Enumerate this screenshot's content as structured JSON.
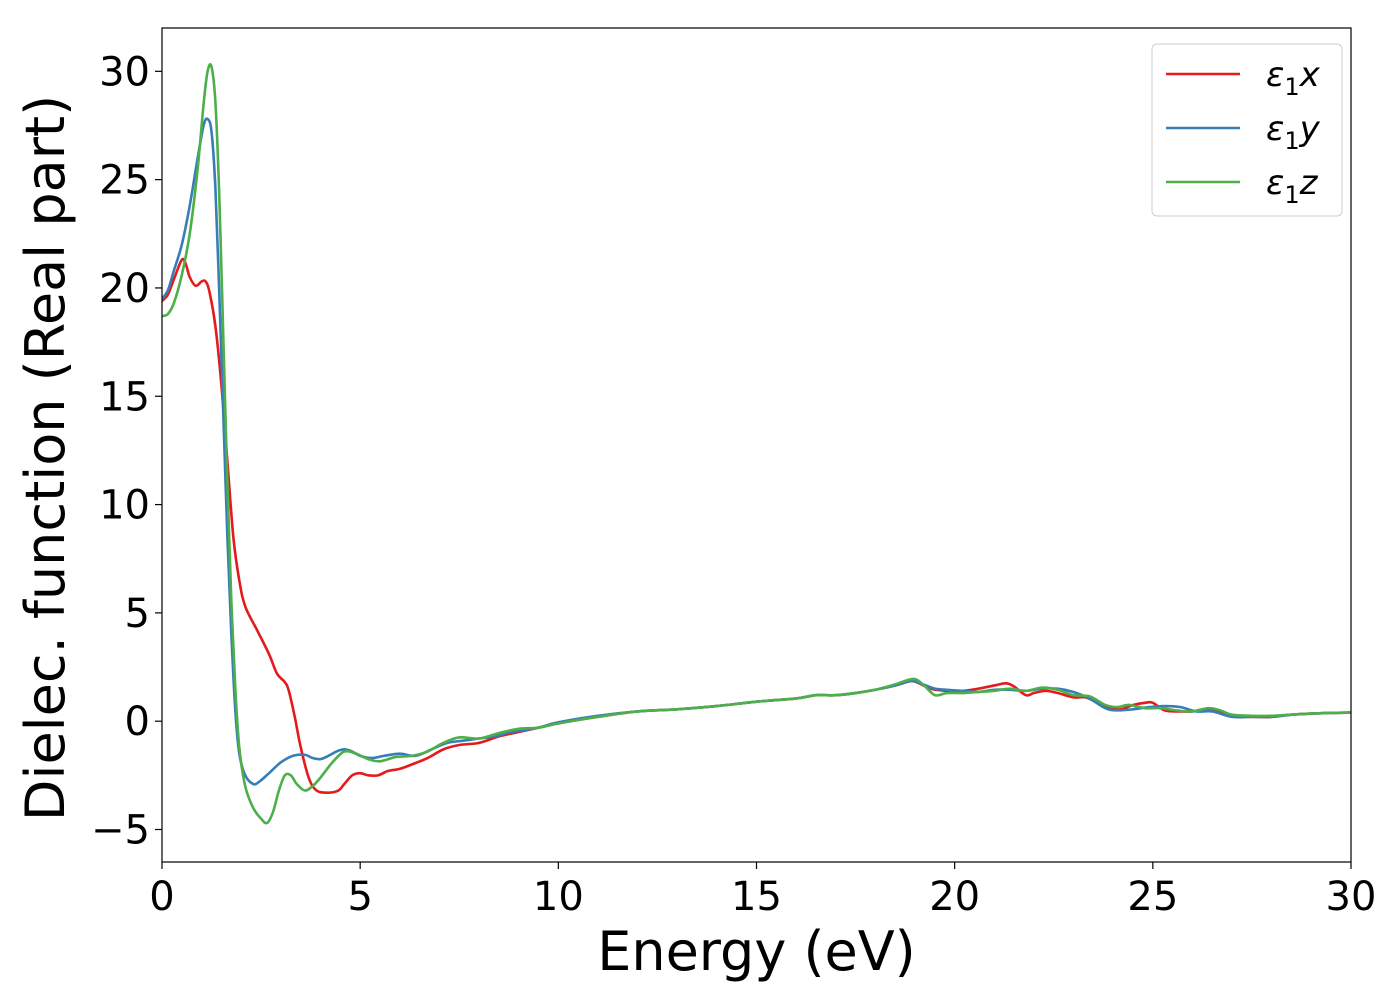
{
  "chart_data": {
    "type": "line",
    "xlabel": "Energy (eV)",
    "ylabel": "Dielec. function (Real part)",
    "xlim": [
      0,
      30
    ],
    "ylim": [
      -6.5,
      32
    ],
    "xticks": [
      0,
      5,
      10,
      15,
      20,
      25,
      30
    ],
    "yticks": [
      -5,
      0,
      5,
      10,
      15,
      20,
      25,
      30
    ],
    "xtick_labels": [
      "0",
      "5",
      "10",
      "15",
      "20",
      "25",
      "30"
    ],
    "ytick_labels": [
      "−5",
      "0",
      "5",
      "10",
      "15",
      "20",
      "25",
      "30"
    ],
    "grid": false,
    "legend_position": "top-right",
    "series": [
      {
        "name": "ε1x",
        "legend_main": "ε",
        "legend_sub": "1",
        "legend_suffix": "x",
        "color": "#e41a1c",
        "points": [
          [
            0,
            19.4
          ],
          [
            0.15,
            19.7
          ],
          [
            0.3,
            20.4
          ],
          [
            0.5,
            21.3
          ],
          [
            0.6,
            21.1
          ],
          [
            0.7,
            20.5
          ],
          [
            0.85,
            20.1
          ],
          [
            1.0,
            20.3
          ],
          [
            1.1,
            20.3
          ],
          [
            1.2,
            19.8
          ],
          [
            1.35,
            18.2
          ],
          [
            1.5,
            15.5
          ],
          [
            1.65,
            12.0
          ],
          [
            1.8,
            8.5
          ],
          [
            1.95,
            6.5
          ],
          [
            2.1,
            5.3
          ],
          [
            2.4,
            4.2
          ],
          [
            2.7,
            3.1
          ],
          [
            2.9,
            2.2
          ],
          [
            3.1,
            1.8
          ],
          [
            3.2,
            1.4
          ],
          [
            3.35,
            0.2
          ],
          [
            3.5,
            -1.2
          ],
          [
            3.7,
            -2.6
          ],
          [
            3.9,
            -3.2
          ],
          [
            4.2,
            -3.3
          ],
          [
            4.45,
            -3.2
          ],
          [
            4.6,
            -2.9
          ],
          [
            4.8,
            -2.5
          ],
          [
            5.0,
            -2.4
          ],
          [
            5.2,
            -2.5
          ],
          [
            5.45,
            -2.5
          ],
          [
            5.7,
            -2.3
          ],
          [
            6.0,
            -2.2
          ],
          [
            6.3,
            -2.0
          ],
          [
            6.7,
            -1.7
          ],
          [
            7.1,
            -1.3
          ],
          [
            7.5,
            -1.1
          ],
          [
            8.0,
            -1.0
          ],
          [
            8.5,
            -0.7
          ],
          [
            9.0,
            -0.5
          ],
          [
            9.5,
            -0.3
          ],
          [
            10.0,
            -0.1
          ],
          [
            11.0,
            0.2
          ],
          [
            12.0,
            0.45
          ],
          [
            13.0,
            0.55
          ],
          [
            14.0,
            0.7
          ],
          [
            15.0,
            0.9
          ],
          [
            16.0,
            1.05
          ],
          [
            16.5,
            1.2
          ],
          [
            17.0,
            1.2
          ],
          [
            17.5,
            1.3
          ],
          [
            18.0,
            1.45
          ],
          [
            18.5,
            1.65
          ],
          [
            18.9,
            1.85
          ],
          [
            19.1,
            1.75
          ],
          [
            19.4,
            1.5
          ],
          [
            19.8,
            1.4
          ],
          [
            20.2,
            1.4
          ],
          [
            20.6,
            1.5
          ],
          [
            21.0,
            1.65
          ],
          [
            21.3,
            1.75
          ],
          [
            21.5,
            1.6
          ],
          [
            21.8,
            1.2
          ],
          [
            22.0,
            1.3
          ],
          [
            22.3,
            1.4
          ],
          [
            22.6,
            1.3
          ],
          [
            23.0,
            1.1
          ],
          [
            23.3,
            1.1
          ],
          [
            23.6,
            0.85
          ],
          [
            23.9,
            0.6
          ],
          [
            24.2,
            0.55
          ],
          [
            24.5,
            0.75
          ],
          [
            24.8,
            0.85
          ],
          [
            25.0,
            0.85
          ],
          [
            25.3,
            0.5
          ],
          [
            25.7,
            0.45
          ],
          [
            26.0,
            0.45
          ],
          [
            26.3,
            0.55
          ],
          [
            26.6,
            0.45
          ],
          [
            27.0,
            0.25
          ],
          [
            27.5,
            0.2
          ],
          [
            28.0,
            0.2
          ],
          [
            28.5,
            0.3
          ],
          [
            29.0,
            0.35
          ],
          [
            29.5,
            0.38
          ],
          [
            30.0,
            0.4
          ]
        ]
      },
      {
        "name": "ε1y",
        "legend_main": "ε",
        "legend_sub": "1",
        "legend_suffix": "y",
        "color": "#377eb8",
        "points": [
          [
            0,
            19.5
          ],
          [
            0.15,
            19.9
          ],
          [
            0.3,
            20.8
          ],
          [
            0.5,
            22.0
          ],
          [
            0.7,
            23.8
          ],
          [
            0.9,
            26.0
          ],
          [
            1.05,
            27.5
          ],
          [
            1.15,
            27.8
          ],
          [
            1.25,
            27.2
          ],
          [
            1.35,
            24.5
          ],
          [
            1.45,
            19.5
          ],
          [
            1.55,
            14.0
          ],
          [
            1.65,
            8.5
          ],
          [
            1.75,
            4.0
          ],
          [
            1.85,
            0.5
          ],
          [
            1.95,
            -1.5
          ],
          [
            2.1,
            -2.5
          ],
          [
            2.3,
            -2.9
          ],
          [
            2.45,
            -2.8
          ],
          [
            2.7,
            -2.4
          ],
          [
            3.0,
            -1.9
          ],
          [
            3.3,
            -1.6
          ],
          [
            3.6,
            -1.55
          ],
          [
            3.8,
            -1.7
          ],
          [
            4.0,
            -1.75
          ],
          [
            4.2,
            -1.6
          ],
          [
            4.4,
            -1.4
          ],
          [
            4.6,
            -1.3
          ],
          [
            4.8,
            -1.4
          ],
          [
            5.0,
            -1.6
          ],
          [
            5.3,
            -1.7
          ],
          [
            5.6,
            -1.6
          ],
          [
            6.0,
            -1.5
          ],
          [
            6.4,
            -1.6
          ],
          [
            6.8,
            -1.3
          ],
          [
            7.2,
            -1.0
          ],
          [
            7.6,
            -0.9
          ],
          [
            8.0,
            -0.8
          ],
          [
            8.4,
            -0.7
          ],
          [
            8.8,
            -0.5
          ],
          [
            9.2,
            -0.4
          ],
          [
            9.6,
            -0.25
          ],
          [
            10.0,
            -0.05
          ],
          [
            11.0,
            0.25
          ],
          [
            12.0,
            0.45
          ],
          [
            13.0,
            0.55
          ],
          [
            14.0,
            0.7
          ],
          [
            15.0,
            0.9
          ],
          [
            16.0,
            1.05
          ],
          [
            16.5,
            1.2
          ],
          [
            17.0,
            1.2
          ],
          [
            17.5,
            1.3
          ],
          [
            18.0,
            1.45
          ],
          [
            18.5,
            1.65
          ],
          [
            18.9,
            1.85
          ],
          [
            19.2,
            1.7
          ],
          [
            19.5,
            1.5
          ],
          [
            19.8,
            1.45
          ],
          [
            20.2,
            1.4
          ],
          [
            20.6,
            1.35
          ],
          [
            21.0,
            1.45
          ],
          [
            21.4,
            1.45
          ],
          [
            21.8,
            1.4
          ],
          [
            22.2,
            1.5
          ],
          [
            22.6,
            1.5
          ],
          [
            23.0,
            1.35
          ],
          [
            23.4,
            1.05
          ],
          [
            23.8,
            0.6
          ],
          [
            24.1,
            0.5
          ],
          [
            24.5,
            0.55
          ],
          [
            24.9,
            0.65
          ],
          [
            25.3,
            0.7
          ],
          [
            25.7,
            0.65
          ],
          [
            26.1,
            0.45
          ],
          [
            26.5,
            0.45
          ],
          [
            27.0,
            0.2
          ],
          [
            27.5,
            0.2
          ],
          [
            28.0,
            0.2
          ],
          [
            28.5,
            0.3
          ],
          [
            29.0,
            0.35
          ],
          [
            29.5,
            0.38
          ],
          [
            30.0,
            0.4
          ]
        ]
      },
      {
        "name": "ε1z",
        "legend_main": "ε",
        "legend_sub": "1",
        "legend_suffix": "z",
        "color": "#4daf4a",
        "points": [
          [
            0,
            18.7
          ],
          [
            0.15,
            18.8
          ],
          [
            0.3,
            19.3
          ],
          [
            0.5,
            20.6
          ],
          [
            0.7,
            22.5
          ],
          [
            0.9,
            25.5
          ],
          [
            1.05,
            28.5
          ],
          [
            1.15,
            30.0
          ],
          [
            1.25,
            30.2
          ],
          [
            1.35,
            28.5
          ],
          [
            1.45,
            24.0
          ],
          [
            1.55,
            17.5
          ],
          [
            1.65,
            11.0
          ],
          [
            1.75,
            5.5
          ],
          [
            1.85,
            1.5
          ],
          [
            1.95,
            -1.2
          ],
          [
            2.1,
            -3.0
          ],
          [
            2.3,
            -4.0
          ],
          [
            2.5,
            -4.5
          ],
          [
            2.65,
            -4.7
          ],
          [
            2.8,
            -4.2
          ],
          [
            2.95,
            -3.2
          ],
          [
            3.1,
            -2.5
          ],
          [
            3.25,
            -2.5
          ],
          [
            3.4,
            -2.9
          ],
          [
            3.6,
            -3.2
          ],
          [
            3.8,
            -3.0
          ],
          [
            4.0,
            -2.6
          ],
          [
            4.3,
            -1.9
          ],
          [
            4.6,
            -1.4
          ],
          [
            4.9,
            -1.5
          ],
          [
            5.2,
            -1.75
          ],
          [
            5.5,
            -1.85
          ],
          [
            5.9,
            -1.65
          ],
          [
            6.3,
            -1.6
          ],
          [
            6.7,
            -1.4
          ],
          [
            7.1,
            -1.0
          ],
          [
            7.5,
            -0.75
          ],
          [
            8.0,
            -0.8
          ],
          [
            8.5,
            -0.55
          ],
          [
            9.0,
            -0.35
          ],
          [
            9.5,
            -0.3
          ],
          [
            10.0,
            -0.1
          ],
          [
            11.0,
            0.2
          ],
          [
            12.0,
            0.45
          ],
          [
            13.0,
            0.55
          ],
          [
            14.0,
            0.7
          ],
          [
            15.0,
            0.9
          ],
          [
            16.0,
            1.05
          ],
          [
            16.5,
            1.2
          ],
          [
            17.0,
            1.2
          ],
          [
            17.5,
            1.3
          ],
          [
            18.0,
            1.45
          ],
          [
            18.5,
            1.7
          ],
          [
            18.95,
            1.95
          ],
          [
            19.2,
            1.7
          ],
          [
            19.5,
            1.2
          ],
          [
            19.8,
            1.3
          ],
          [
            20.2,
            1.3
          ],
          [
            20.6,
            1.35
          ],
          [
            21.0,
            1.4
          ],
          [
            21.4,
            1.5
          ],
          [
            21.8,
            1.4
          ],
          [
            22.2,
            1.55
          ],
          [
            22.6,
            1.45
          ],
          [
            23.0,
            1.2
          ],
          [
            23.4,
            1.15
          ],
          [
            23.8,
            0.75
          ],
          [
            24.1,
            0.65
          ],
          [
            24.4,
            0.75
          ],
          [
            24.8,
            0.6
          ],
          [
            25.2,
            0.6
          ],
          [
            25.6,
            0.5
          ],
          [
            26.0,
            0.45
          ],
          [
            26.4,
            0.6
          ],
          [
            26.7,
            0.5
          ],
          [
            27.0,
            0.3
          ],
          [
            27.5,
            0.25
          ],
          [
            28.0,
            0.25
          ],
          [
            28.5,
            0.3
          ],
          [
            29.0,
            0.35
          ],
          [
            29.5,
            0.38
          ],
          [
            30.0,
            0.4
          ]
        ]
      }
    ]
  }
}
